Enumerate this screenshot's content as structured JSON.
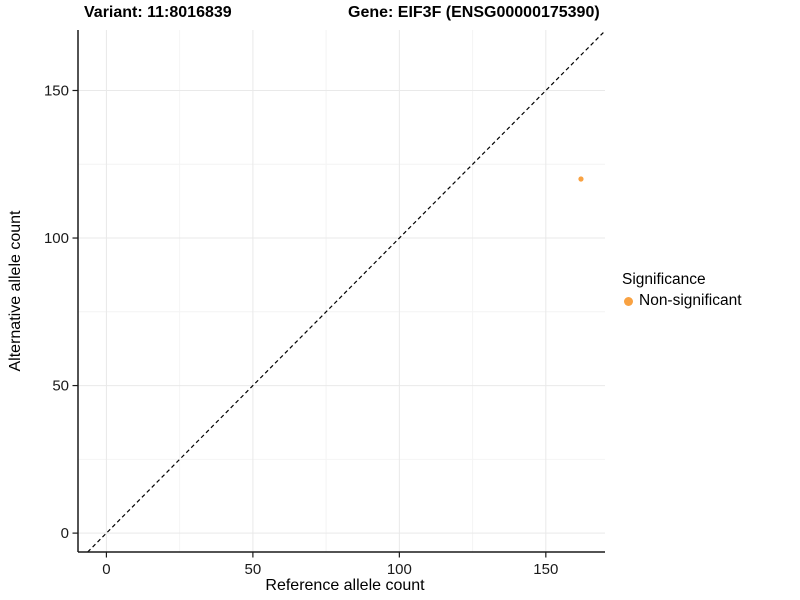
{
  "chart_data": {
    "type": "scatter",
    "title_left": "Variant: 11:8016839",
    "title_right": "Gene: EIF3F (ENSG00000175390)",
    "xlabel": "Reference allele count",
    "ylabel": "Alternative allele count",
    "xlim": [
      -9.7,
      170.2
    ],
    "ylim": [
      -6.4,
      170.5
    ],
    "x_ticks": [
      0,
      50,
      100,
      150
    ],
    "y_ticks": [
      0,
      50,
      100,
      150
    ],
    "x_minor_gridlines": [
      25,
      75,
      125
    ],
    "y_minor_gridlines": [
      25,
      75,
      125
    ],
    "grid": "on",
    "identity_line": {
      "slope": 1,
      "intercept": 0,
      "style": "dashed",
      "color": "#000000"
    },
    "series": [
      {
        "name": "Non-significant",
        "color": "#F9A242",
        "points": [
          {
            "x": 162,
            "y": 120
          }
        ]
      }
    ],
    "legend": {
      "title": "Significance",
      "position": "right",
      "entries": [
        {
          "label": "Non-significant",
          "color": "#F9A242"
        }
      ]
    }
  },
  "colors": {
    "background": "#FFFFFF",
    "grid_major": "#E9E9E9",
    "grid_minor": "#F4F4F4",
    "axis_line": "#1A1A1A",
    "tick_label": "#1A1A1A",
    "point": "#F9A242"
  }
}
